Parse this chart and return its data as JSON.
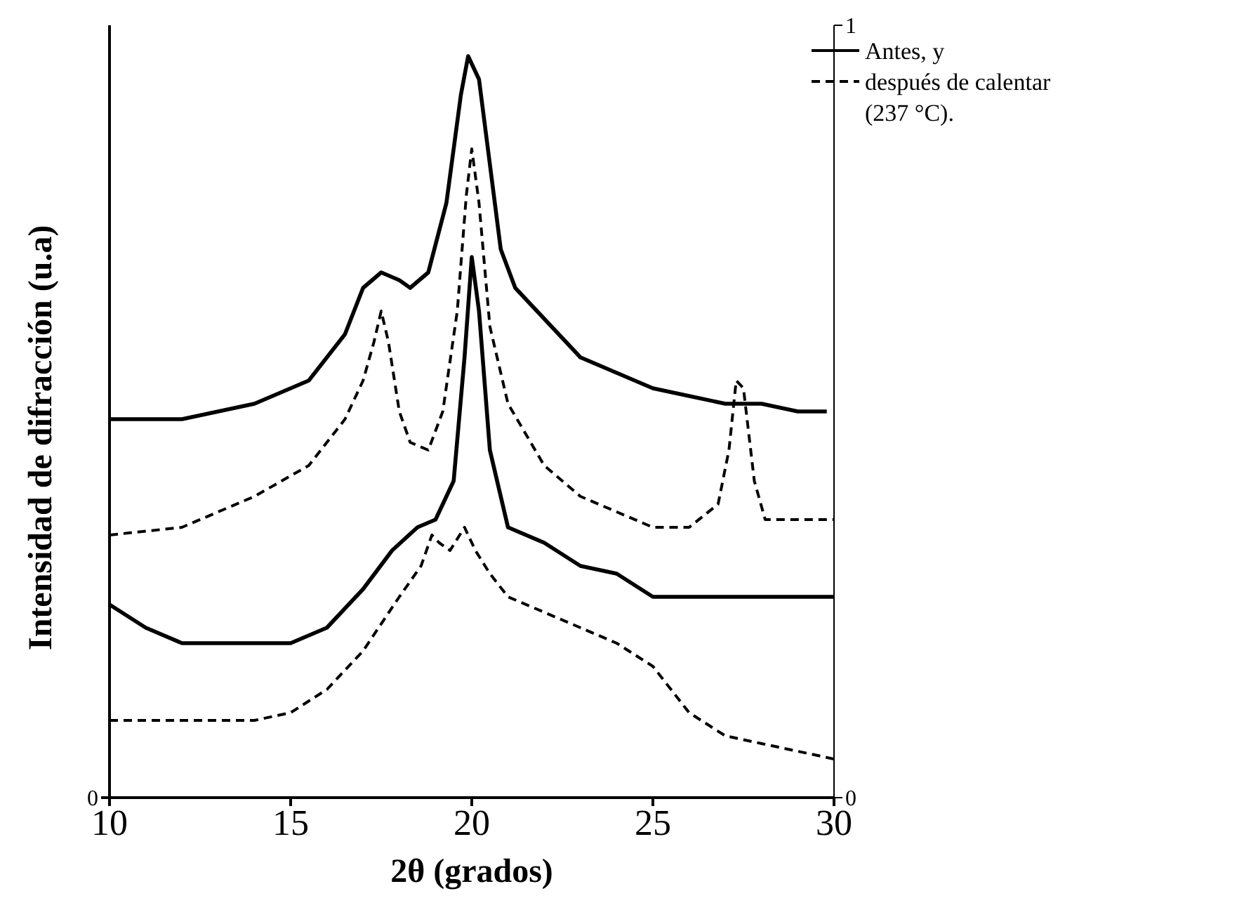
{
  "chart_data": {
    "type": "line",
    "xlabel": "2θ  (grados)",
    "ylabel": "Intensidad de difracción (u.a)",
    "xlim": [
      10,
      30
    ],
    "xticks": [
      10,
      15,
      20,
      25,
      30
    ],
    "annotations": [
      "0"
    ],
    "y2lim": [
      0,
      1
    ],
    "y2ticks": [
      0,
      1
    ],
    "grid": false,
    "marker": "none",
    "legend": "top right",
    "series": [
      {
        "name": "Antes, y",
        "axis": "y2",
        "color": "#000000",
        "line_style": "solid",
        "x": [
          10,
          12,
          14,
          15.5,
          16.5,
          17,
          17.5,
          18,
          18.3,
          18.8,
          19.3,
          19.7,
          19.9,
          20.2,
          20.5,
          20.8,
          21.2,
          22,
          23,
          24,
          25,
          26,
          27,
          28,
          29,
          29.8
        ],
        "values": [
          0.49,
          0.49,
          0.51,
          0.54,
          0.6,
          0.66,
          0.68,
          0.67,
          0.66,
          0.68,
          0.77,
          0.91,
          0.96,
          0.93,
          0.82,
          0.71,
          0.66,
          0.62,
          0.57,
          0.55,
          0.53,
          0.52,
          0.51,
          0.51,
          0.5,
          0.5
        ]
      },
      {
        "name": "después de calentar (237 °C).",
        "axis": "y2",
        "color": "#000000",
        "line_style": "dashed",
        "x": [
          10,
          12,
          14,
          15.5,
          16.5,
          17,
          17.3,
          17.5,
          17.7,
          18,
          18.3,
          18.8,
          19.2,
          19.6,
          19.85,
          20,
          20.2,
          20.5,
          21,
          22,
          23,
          24,
          25,
          26,
          26.8,
          27.1,
          27.3,
          27.5,
          27.8,
          28.1,
          28.5,
          30
        ],
        "values": [
          0.34,
          0.35,
          0.39,
          0.43,
          0.49,
          0.54,
          0.59,
          0.63,
          0.59,
          0.5,
          0.46,
          0.45,
          0.5,
          0.63,
          0.78,
          0.84,
          0.77,
          0.61,
          0.51,
          0.43,
          0.39,
          0.37,
          0.35,
          0.35,
          0.38,
          0.45,
          0.54,
          0.53,
          0.41,
          0.36,
          0.36,
          0.36
        ]
      },
      {
        "axis": "y2",
        "color": "#000000",
        "line_style": "solid",
        "x": [
          10,
          11,
          12,
          14,
          15,
          16,
          17,
          17.8,
          18.5,
          19,
          19.5,
          19.8,
          20,
          20.2,
          20.5,
          21,
          22,
          23,
          24,
          25,
          26,
          27,
          28,
          29,
          30
        ],
        "values": [
          0.25,
          0.22,
          0.2,
          0.2,
          0.2,
          0.22,
          0.27,
          0.32,
          0.35,
          0.36,
          0.41,
          0.57,
          0.7,
          0.63,
          0.45,
          0.35,
          0.33,
          0.3,
          0.29,
          0.26,
          0.26,
          0.26,
          0.26,
          0.26,
          0.26
        ]
      },
      {
        "axis": "y2",
        "color": "#000000",
        "line_style": "dashed",
        "x": [
          10,
          12,
          14,
          15,
          16,
          17,
          18,
          18.6,
          18.9,
          19.1,
          19.4,
          19.8,
          20.1,
          20.5,
          21,
          22,
          23,
          24,
          25,
          26,
          27,
          28,
          29,
          30
        ],
        "values": [
          0.1,
          0.1,
          0.1,
          0.11,
          0.14,
          0.19,
          0.26,
          0.3,
          0.34,
          0.33,
          0.32,
          0.35,
          0.32,
          0.29,
          0.26,
          0.24,
          0.22,
          0.2,
          0.17,
          0.11,
          0.08,
          0.07,
          0.06,
          0.05
        ]
      }
    ]
  }
}
